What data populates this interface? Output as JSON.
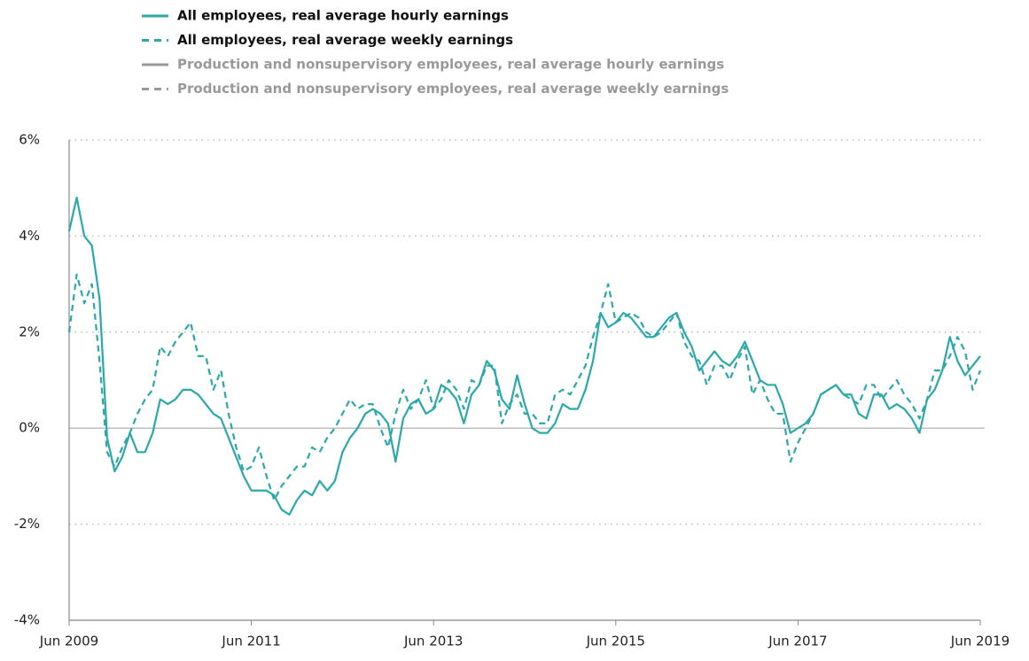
{
  "chart_data": {
    "type": "line",
    "x": [
      "2009-06",
      "2009-07",
      "2009-08",
      "2009-09",
      "2009-10",
      "2009-11",
      "2009-12",
      "2010-01",
      "2010-02",
      "2010-03",
      "2010-04",
      "2010-05",
      "2010-06",
      "2010-07",
      "2010-08",
      "2010-09",
      "2010-10",
      "2010-11",
      "2010-12",
      "2011-01",
      "2011-02",
      "2011-03",
      "2011-04",
      "2011-05",
      "2011-06",
      "2011-07",
      "2011-08",
      "2011-09",
      "2011-10",
      "2011-11",
      "2011-12",
      "2012-01",
      "2012-02",
      "2012-03",
      "2012-04",
      "2012-05",
      "2012-06",
      "2012-07",
      "2012-08",
      "2012-09",
      "2012-10",
      "2012-11",
      "2012-12",
      "2013-01",
      "2013-02",
      "2013-03",
      "2013-04",
      "2013-05",
      "2013-06",
      "2013-07",
      "2013-08",
      "2013-09",
      "2013-10",
      "2013-11",
      "2013-12",
      "2014-01",
      "2014-02",
      "2014-03",
      "2014-04",
      "2014-05",
      "2014-06",
      "2014-07",
      "2014-08",
      "2014-09",
      "2014-10",
      "2014-11",
      "2014-12",
      "2015-01",
      "2015-02",
      "2015-03",
      "2015-04",
      "2015-05",
      "2015-06",
      "2015-07",
      "2015-08",
      "2015-09",
      "2015-10",
      "2015-11",
      "2015-12",
      "2016-01",
      "2016-02",
      "2016-03",
      "2016-04",
      "2016-05",
      "2016-06",
      "2016-07",
      "2016-08",
      "2016-09",
      "2016-10",
      "2016-11",
      "2016-12",
      "2017-01",
      "2017-02",
      "2017-03",
      "2017-04",
      "2017-05",
      "2017-06",
      "2017-07",
      "2017-08",
      "2017-09",
      "2017-10",
      "2017-11",
      "2017-12",
      "2018-01",
      "2018-02",
      "2018-03",
      "2018-04",
      "2018-05",
      "2018-06",
      "2018-07",
      "2018-08",
      "2018-09",
      "2018-10",
      "2018-11",
      "2018-12",
      "2019-01",
      "2019-02",
      "2019-03",
      "2019-04",
      "2019-05",
      "2019-06"
    ],
    "series": [
      {
        "name": "All employees, real average hourly earnings",
        "color": "#2aa9a9",
        "dash": false,
        "visible": true,
        "values": [
          4.1,
          4.8,
          4.0,
          3.8,
          2.7,
          -0.2,
          -0.9,
          -0.6,
          -0.1,
          -0.5,
          -0.5,
          -0.1,
          0.6,
          0.5,
          0.6,
          0.8,
          0.8,
          0.7,
          0.5,
          0.3,
          0.2,
          -0.2,
          -0.6,
          -1.0,
          -1.3,
          -1.3,
          -1.3,
          -1.4,
          -1.7,
          -1.8,
          -1.5,
          -1.3,
          -1.4,
          -1.1,
          -1.3,
          -1.1,
          -0.5,
          -0.2,
          0.0,
          0.3,
          0.4,
          0.3,
          0.1,
          -0.7,
          0.2,
          0.5,
          0.6,
          0.3,
          0.4,
          0.9,
          0.8,
          0.6,
          0.1,
          0.7,
          0.9,
          1.4,
          1.2,
          0.6,
          0.4,
          1.1,
          0.5,
          0.0,
          -0.1,
          -0.1,
          0.1,
          0.5,
          0.4,
          0.4,
          0.8,
          1.4,
          2.4,
          2.1,
          2.2,
          2.4,
          2.3,
          2.1,
          1.9,
          1.9,
          2.1,
          2.3,
          2.4,
          2.0,
          1.7,
          1.2,
          1.4,
          1.6,
          1.4,
          1.3,
          1.5,
          1.8,
          1.4,
          1.0,
          0.9,
          0.9,
          0.5,
          -0.1,
          0.0,
          0.1,
          0.3,
          0.7,
          0.8,
          0.9,
          0.7,
          0.7,
          0.3,
          0.2,
          0.7,
          0.7,
          0.4,
          0.5,
          0.4,
          0.2,
          -0.1,
          0.6,
          0.8,
          1.2,
          1.9,
          1.4,
          1.1,
          1.3,
          1.5
        ]
      },
      {
        "name": "All employees, real average weekly earnings",
        "color": "#2aa9a9",
        "dash": true,
        "visible": true,
        "values": [
          2.0,
          3.2,
          2.6,
          3.0,
          1.4,
          -0.5,
          -0.8,
          -0.4,
          -0.1,
          0.3,
          0.6,
          0.8,
          1.7,
          1.5,
          1.8,
          2.0,
          2.2,
          1.5,
          1.5,
          0.8,
          1.2,
          0.3,
          -0.4,
          -0.9,
          -0.8,
          -0.4,
          -1.0,
          -1.5,
          -1.2,
          -1.0,
          -0.8,
          -0.8,
          -0.4,
          -0.5,
          -0.2,
          0.0,
          0.3,
          0.6,
          0.4,
          0.5,
          0.5,
          0.0,
          -0.4,
          0.3,
          0.8,
          0.4,
          0.6,
          1.0,
          0.4,
          0.6,
          1.0,
          0.8,
          0.4,
          1.0,
          0.9,
          1.3,
          1.3,
          0.1,
          0.5,
          0.7,
          0.3,
          0.3,
          0.1,
          0.1,
          0.7,
          0.8,
          0.7,
          1.0,
          1.3,
          1.9,
          2.4,
          3.0,
          2.2,
          2.3,
          2.4,
          2.3,
          2.0,
          1.9,
          2.0,
          2.2,
          2.4,
          1.8,
          1.5,
          1.4,
          0.9,
          1.3,
          1.3,
          1.0,
          1.4,
          1.7,
          0.7,
          1.0,
          0.6,
          0.3,
          0.3,
          -0.7,
          -0.3,
          0.0,
          0.3,
          0.7,
          0.8,
          0.9,
          0.7,
          0.6,
          0.5,
          0.9,
          0.9,
          0.6,
          0.8,
          1.0,
          0.7,
          0.5,
          0.2,
          0.6,
          1.2,
          1.2,
          1.5,
          1.9,
          1.6,
          0.8,
          1.2
        ]
      },
      {
        "name": "Production and nonsupervisory employees, real average hourly earnings",
        "color": "#999999",
        "dash": false,
        "visible": false,
        "values": [
          null,
          null,
          null,
          null,
          null,
          null,
          null,
          null,
          null,
          null,
          null,
          null,
          null,
          null,
          null,
          null,
          null,
          null,
          null,
          null,
          null,
          null,
          null,
          null,
          null,
          null,
          null,
          null,
          null,
          null,
          null,
          null,
          null,
          null,
          null,
          null,
          null,
          null,
          null,
          null,
          null,
          null,
          null,
          null,
          null,
          null,
          null,
          null,
          null,
          null,
          null,
          null,
          null,
          null,
          null,
          null,
          null,
          null,
          null,
          null,
          null,
          null,
          null,
          null,
          null,
          null,
          null,
          null,
          null,
          null,
          null,
          null,
          null,
          null,
          null,
          null,
          null,
          null,
          null,
          null,
          null,
          null,
          null,
          null,
          null,
          null,
          null,
          null,
          null,
          null,
          null,
          null,
          null,
          null,
          null,
          null,
          null,
          null,
          null,
          null,
          null,
          null,
          null,
          null,
          null,
          null,
          null,
          null,
          null,
          null,
          null,
          null,
          null,
          null,
          null,
          null,
          null,
          null,
          null,
          null,
          null
        ]
      },
      {
        "name": "Production and nonsupervisory employees, real average weekly earnings",
        "color": "#999999",
        "dash": true,
        "visible": false,
        "values": [
          null,
          null,
          null,
          null,
          null,
          null,
          null,
          null,
          null,
          null,
          null,
          null,
          null,
          null,
          null,
          null,
          null,
          null,
          null,
          null,
          null,
          null,
          null,
          null,
          null,
          null,
          null,
          null,
          null,
          null,
          null,
          null,
          null,
          null,
          null,
          null,
          null,
          null,
          null,
          null,
          null,
          null,
          null,
          null,
          null,
          null,
          null,
          null,
          null,
          null,
          null,
          null,
          null,
          null,
          null,
          null,
          null,
          null,
          null,
          null,
          null,
          null,
          null,
          null,
          null,
          null,
          null,
          null,
          null,
          null,
          null,
          null,
          null,
          null,
          null,
          null,
          null,
          null,
          null,
          null,
          null,
          null,
          null,
          null,
          null,
          null,
          null,
          null,
          null,
          null,
          null,
          null,
          null,
          null,
          null,
          null,
          null,
          null,
          null,
          null,
          null,
          null,
          null,
          null,
          null,
          null,
          null,
          null,
          null,
          null,
          null,
          null,
          null,
          null,
          null,
          null,
          null,
          null,
          null,
          null,
          null
        ]
      }
    ],
    "xlim": [
      "2009-06",
      "2019-06"
    ],
    "xticks": [
      {
        "value": "2009-06",
        "label": "Jun 2009"
      },
      {
        "value": "2011-06",
        "label": "Jun 2011"
      },
      {
        "value": "2013-06",
        "label": "Jun 2013"
      },
      {
        "value": "2015-06",
        "label": "Jun 2015"
      },
      {
        "value": "2017-06",
        "label": "Jun 2017"
      },
      {
        "value": "2019-06",
        "label": "Jun 2019"
      }
    ],
    "ylim": [
      -4,
      6
    ],
    "yticks": [
      {
        "value": -4,
        "label": "-4%"
      },
      {
        "value": -2,
        "label": "-2%"
      },
      {
        "value": 0,
        "label": "0%"
      },
      {
        "value": 2,
        "label": "2%"
      },
      {
        "value": 4,
        "label": "4%"
      },
      {
        "value": 6,
        "label": "6%"
      }
    ],
    "grid": true,
    "legend": "top"
  }
}
